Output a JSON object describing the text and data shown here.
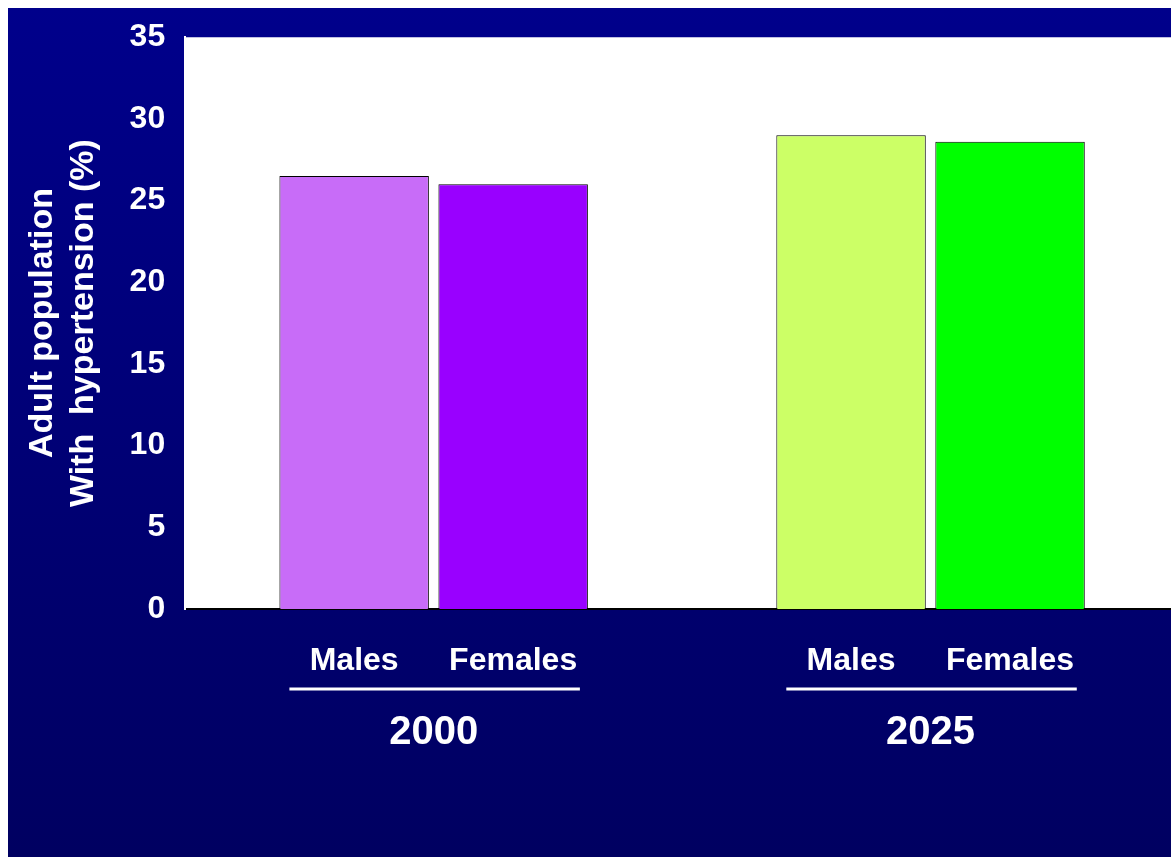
{
  "chart_data": {
    "type": "bar",
    "ylabel": "Adult population\nWith  hypertension (%)",
    "categories": [
      "2000",
      "2025"
    ],
    "series": [
      {
        "name": "Males",
        "colors": [
          "#c86cf8",
          "#ccff66"
        ],
        "values": [
          26.5,
          29.0
        ]
      },
      {
        "name": "Females",
        "colors": [
          "#9900ff",
          "#00ff00"
        ],
        "values": [
          26.0,
          28.6
        ]
      }
    ],
    "ylim": [
      0,
      35
    ],
    "yticks": [
      0,
      5,
      10,
      15,
      20,
      25,
      30,
      35
    ],
    "grid": false,
    "legend": false
  }
}
